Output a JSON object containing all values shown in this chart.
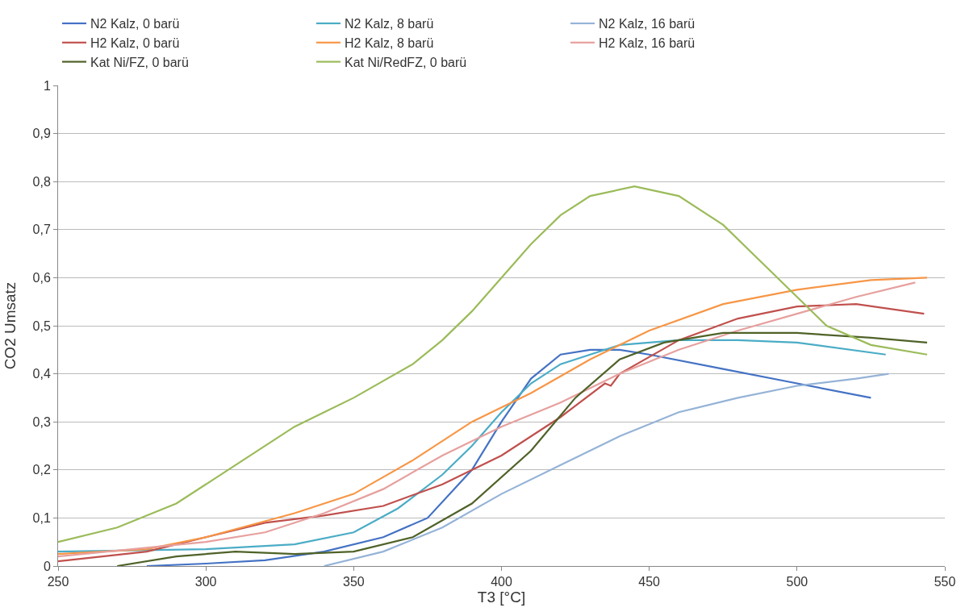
{
  "chart_data": {
    "type": "line",
    "xlabel": "T3 [°C]",
    "ylabel": "CO2 Umsatz",
    "xlim": [
      250,
      550
    ],
    "xticks": [
      250,
      300,
      350,
      400,
      450,
      500,
      550
    ],
    "ylim": [
      0,
      1
    ],
    "yticks": [
      0,
      {
        "value": 0.1,
        "label": "0,1"
      },
      {
        "value": 0.2,
        "label": "0,2"
      },
      {
        "value": 0.3,
        "label": "0,3"
      },
      {
        "value": 0.4,
        "label": "0,4"
      },
      {
        "value": 0.5,
        "label": "0,5"
      },
      {
        "value": 0.6,
        "label": "0,6"
      },
      {
        "value": 0.7,
        "label": "0,7"
      },
      {
        "value": 0.8,
        "label": "0,8"
      },
      {
        "value": 0.9,
        "label": "0,9"
      },
      1
    ],
    "grid": "y",
    "legend": "top",
    "marker": "none",
    "line_style": "solid",
    "series": [
      {
        "name": "N2 Kalz, 0 barü",
        "color": "#4472c4",
        "x": [
          280,
          300,
          320,
          340,
          360,
          375,
          390,
          400,
          410,
          420,
          430,
          440,
          450,
          475,
          500,
          525
        ],
        "values": [
          0,
          0.005,
          0.012,
          0.03,
          0.06,
          0.1,
          0.2,
          0.3,
          0.39,
          0.44,
          0.45,
          0.45,
          0.44,
          0.41,
          0.38,
          0.35
        ]
      },
      {
        "name": "N2 Kalz, 8 barü",
        "color": "#4bacc6",
        "x": [
          250,
          300,
          330,
          350,
          365,
          380,
          390,
          400,
          410,
          420,
          440,
          460,
          480,
          500,
          530
        ],
        "values": [
          0.03,
          0.035,
          0.045,
          0.07,
          0.12,
          0.19,
          0.25,
          0.32,
          0.38,
          0.42,
          0.46,
          0.47,
          0.47,
          0.465,
          0.44
        ]
      },
      {
        "name": "N2 Kalz, 16 barü",
        "color": "#95b3d7",
        "x": [
          340,
          360,
          380,
          400,
          420,
          440,
          460,
          480,
          500,
          520,
          531
        ],
        "values": [
          0,
          0.03,
          0.08,
          0.15,
          0.21,
          0.27,
          0.32,
          0.35,
          0.375,
          0.39,
          0.4
        ]
      },
      {
        "name": "H2 Kalz, 0 barü",
        "color": "#c0504d",
        "x": [
          250,
          280,
          300,
          320,
          340,
          360,
          380,
          400,
          420,
          435,
          437,
          440,
          460,
          480,
          500,
          520,
          543
        ],
        "values": [
          0.01,
          0.03,
          0.06,
          0.09,
          0.105,
          0.125,
          0.17,
          0.23,
          0.31,
          0.38,
          0.375,
          0.4,
          0.47,
          0.515,
          0.54,
          0.545,
          0.525
        ]
      },
      {
        "name": "H2 Kalz, 8 barü",
        "color": "#f79646",
        "x": [
          250,
          280,
          300,
          330,
          350,
          370,
          390,
          410,
          430,
          450,
          475,
          500,
          525,
          544
        ],
        "values": [
          0.025,
          0.035,
          0.06,
          0.11,
          0.15,
          0.22,
          0.3,
          0.36,
          0.43,
          0.49,
          0.545,
          0.575,
          0.595,
          0.6
        ]
      },
      {
        "name": "H2 Kalz, 16 barü",
        "color": "#e6a09e",
        "x": [
          250,
          300,
          320,
          340,
          360,
          380,
          400,
          420,
          440,
          460,
          480,
          500,
          520,
          540
        ],
        "values": [
          0.02,
          0.05,
          0.07,
          0.11,
          0.16,
          0.23,
          0.29,
          0.34,
          0.4,
          0.45,
          0.49,
          0.525,
          0.56,
          0.59
        ]
      },
      {
        "name": "Kat Ni/FZ, 0 barü",
        "color": "#4f6228",
        "x": [
          270,
          290,
          310,
          330,
          350,
          370,
          390,
          410,
          425,
          440,
          455,
          475,
          500,
          525,
          544
        ],
        "values": [
          0,
          0.02,
          0.03,
          0.025,
          0.03,
          0.06,
          0.13,
          0.24,
          0.35,
          0.43,
          0.465,
          0.485,
          0.485,
          0.475,
          0.465
        ]
      },
      {
        "name": "Kat Ni/RedFZ, 0 barü",
        "color": "#9bbb59",
        "x": [
          250,
          270,
          290,
          310,
          330,
          350,
          370,
          380,
          390,
          400,
          410,
          420,
          430,
          445,
          460,
          475,
          490,
          500,
          510,
          525,
          544
        ],
        "values": [
          0.05,
          0.08,
          0.13,
          0.21,
          0.29,
          0.35,
          0.42,
          0.47,
          0.53,
          0.6,
          0.67,
          0.73,
          0.77,
          0.79,
          0.77,
          0.71,
          0.62,
          0.56,
          0.5,
          0.46,
          0.44
        ]
      }
    ]
  }
}
